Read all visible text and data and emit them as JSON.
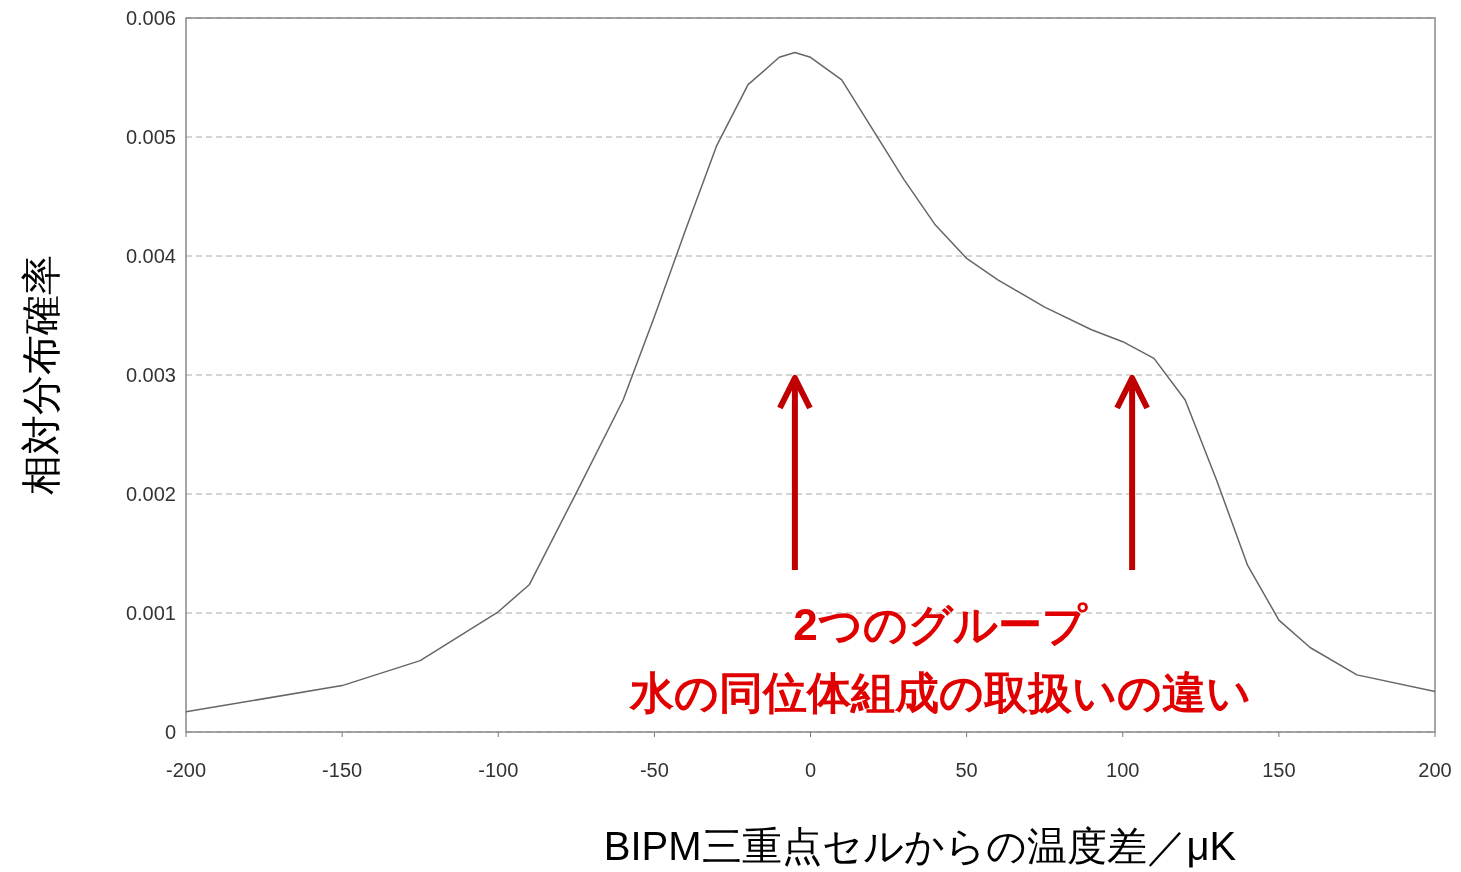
{
  "chart_data": {
    "type": "line",
    "xlabel": "BIPM三重点セルからの温度差／μK",
    "ylabel": "相対分布確率",
    "x": [
      -200,
      -150,
      -125,
      -100,
      -90,
      -75,
      -60,
      -50,
      -40,
      -30,
      -20,
      -10,
      -5,
      0,
      10,
      20,
      30,
      40,
      50,
      60,
      75,
      90,
      100,
      110,
      120,
      130,
      140,
      150,
      160,
      175,
      200
    ],
    "series": [
      {
        "color": "#666666",
        "values": [
          0.00017,
          0.00039,
          0.0006,
          0.00101,
          0.00124,
          0.00201,
          0.00279,
          0.00349,
          0.00422,
          0.00493,
          0.00544,
          0.00567,
          0.00571,
          0.00567,
          0.00548,
          0.00506,
          0.00464,
          0.00426,
          0.00398,
          0.0038,
          0.00357,
          0.00338,
          0.00328,
          0.00314,
          0.00279,
          0.00212,
          0.0014,
          0.00094,
          0.00071,
          0.00048,
          0.00034
        ]
      }
    ],
    "xlim": [
      -200,
      200
    ],
    "xticks": [
      -200,
      -150,
      -100,
      -50,
      0,
      50,
      100,
      150,
      200
    ],
    "ylim": [
      0,
      0.006
    ],
    "yticks": [
      0,
      0.001,
      0.002,
      0.003,
      0.004,
      0.005,
      0.006
    ],
    "grid": "y",
    "marker": "none",
    "line_style": "solid",
    "annotations": [
      "2つのグループ",
      "水の同位体組成の取扱いの違い"
    ]
  }
}
